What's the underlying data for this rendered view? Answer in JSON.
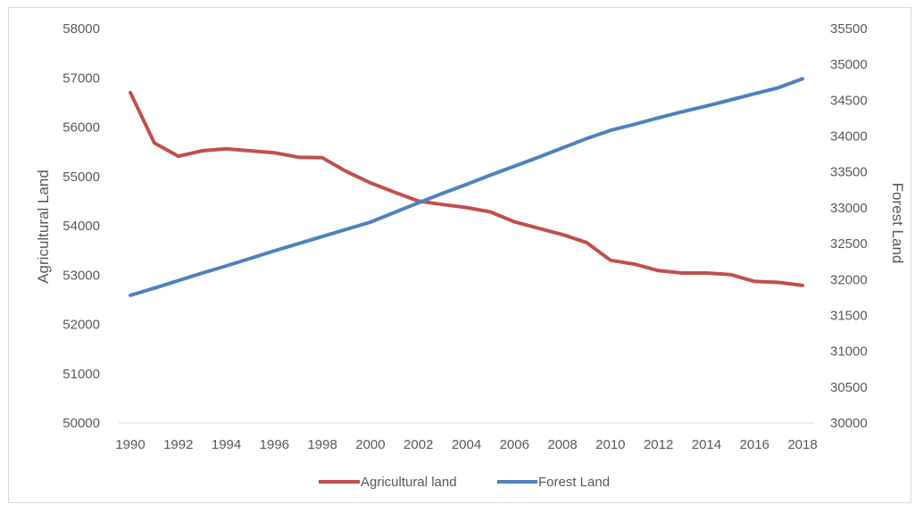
{
  "chart_data": {
    "type": "line",
    "title": "",
    "xlabel": "",
    "ylabel": "Agricultural Land",
    "y2label": "Forest Land",
    "x": [
      1990,
      1991,
      1992,
      1993,
      1994,
      1995,
      1996,
      1997,
      1998,
      1999,
      2000,
      2001,
      2002,
      2003,
      2004,
      2005,
      2006,
      2007,
      2008,
      2009,
      2010,
      2011,
      2012,
      2013,
      2014,
      2015,
      2016,
      2017,
      2018
    ],
    "x_tick_labels": [
      "1990",
      "1992",
      "1994",
      "1996",
      "1998",
      "2000",
      "2002",
      "2004",
      "2006",
      "2008",
      "2010",
      "2012",
      "2014",
      "2016",
      "2018"
    ],
    "ylim": [
      50000,
      58000
    ],
    "y_ticks": [
      50000,
      51000,
      52000,
      53000,
      54000,
      55000,
      56000,
      57000,
      58000
    ],
    "y2lim": [
      30000,
      35500
    ],
    "y2_ticks": [
      30000,
      30500,
      31000,
      31500,
      32000,
      32500,
      33000,
      33500,
      34000,
      34500,
      35000,
      35500
    ],
    "legend_position": "bottom",
    "grid": false,
    "series": [
      {
        "name": "Agricultural land",
        "axis": "left",
        "color": "#c0504d",
        "values": [
          56700,
          55680,
          55410,
          55520,
          55560,
          55520,
          55480,
          55390,
          55380,
          55100,
          54870,
          54680,
          54500,
          54430,
          54370,
          54280,
          54080,
          53950,
          53820,
          53660,
          53300,
          53220,
          53090,
          53040,
          53040,
          53010,
          52870,
          52850,
          52790
        ]
      },
      {
        "name": "Forest Land",
        "axis": "right",
        "color": "#4f81bd",
        "values": [
          31780,
          31880,
          31985,
          32090,
          32190,
          32295,
          32400,
          32500,
          32600,
          32700,
          32800,
          32935,
          33070,
          33200,
          33325,
          33455,
          33580,
          33705,
          33835,
          33965,
          34080,
          34165,
          34255,
          34340,
          34420,
          34505,
          34590,
          34675,
          34800
        ]
      }
    ]
  }
}
